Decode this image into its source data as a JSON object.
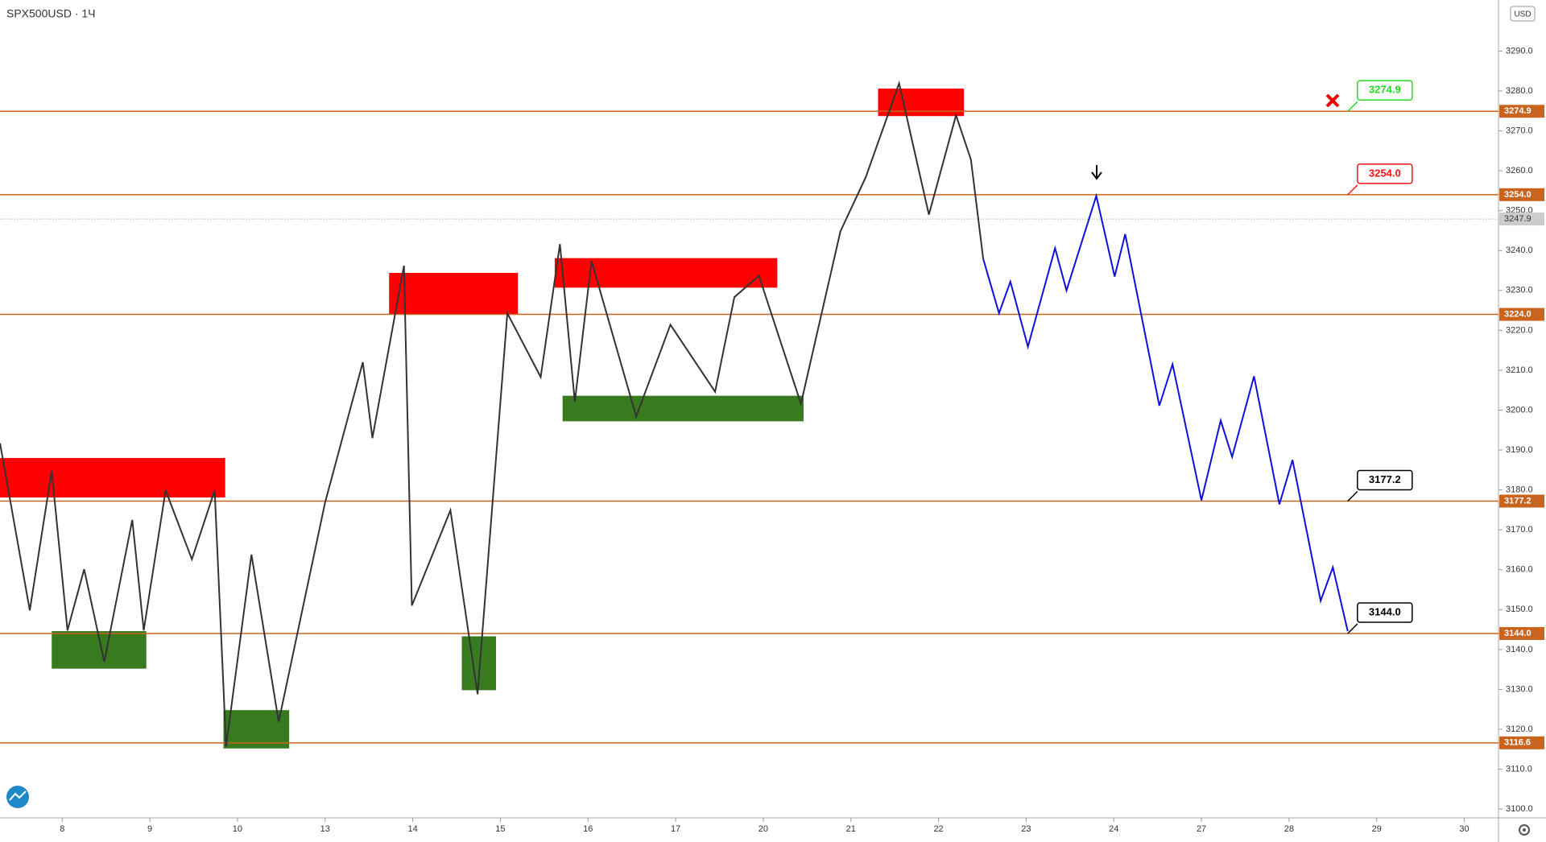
{
  "chart_data": {
    "type": "line",
    "title": "SPX500USD · 1Ч",
    "currency": "USD",
    "xlim": [
      -0.71,
      16.39
    ],
    "ylim": [
      3097.8,
      3302.8
    ],
    "xticks": [
      {
        "value": 0,
        "label": "8"
      },
      {
        "value": 1,
        "label": "9"
      },
      {
        "value": 2,
        "label": "10"
      },
      {
        "value": 3,
        "label": "13"
      },
      {
        "value": 4,
        "label": "14"
      },
      {
        "value": 5,
        "label": "15"
      },
      {
        "value": 6,
        "label": "16"
      },
      {
        "value": 7,
        "label": "17"
      },
      {
        "value": 8,
        "label": "20"
      },
      {
        "value": 9,
        "label": "21"
      },
      {
        "value": 10,
        "label": "22"
      },
      {
        "value": 11,
        "label": "23"
      },
      {
        "value": 12,
        "label": "24"
      },
      {
        "value": 13,
        "label": "27"
      },
      {
        "value": 14,
        "label": "28"
      },
      {
        "value": 15,
        "label": "29"
      },
      {
        "value": 16,
        "label": "30"
      }
    ],
    "yticks": [
      {
        "value": 3100,
        "label": "3100.0"
      },
      {
        "value": 3110,
        "label": "3110.0"
      },
      {
        "value": 3120,
        "label": "3120.0"
      },
      {
        "value": 3130,
        "label": "3130.0"
      },
      {
        "value": 3140,
        "label": "3140.0"
      },
      {
        "value": 3150,
        "label": "3150.0"
      },
      {
        "value": 3160,
        "label": "3160.0"
      },
      {
        "value": 3170,
        "label": "3170.0"
      },
      {
        "value": 3180,
        "label": "3180.0"
      },
      {
        "value": 3190,
        "label": "3190.0"
      },
      {
        "value": 3200,
        "label": "3200.0"
      },
      {
        "value": 3210,
        "label": "3210.0"
      },
      {
        "value": 3220,
        "label": "3220.0"
      },
      {
        "value": 3230,
        "label": "3230.0"
      },
      {
        "value": 3240,
        "label": "3240.0"
      },
      {
        "value": 3250,
        "label": "3250.0"
      },
      {
        "value": 3260,
        "label": "3260.0"
      },
      {
        "value": 3270,
        "label": "3270.0"
      },
      {
        "value": 3280,
        "label": "3280.0"
      },
      {
        "value": 3290,
        "label": "3290.0"
      }
    ],
    "level_color": "#c8641e",
    "levels": [
      {
        "value": 3274.9,
        "label": "3274.9"
      },
      {
        "value": 3254,
        "label": "3254.0"
      },
      {
        "value": 3224,
        "label": "3224.0"
      },
      {
        "value": 3177.2,
        "label": "3177.2"
      },
      {
        "value": 3144,
        "label": "3144.0"
      },
      {
        "value": 3116.6,
        "label": "3116.6"
      }
    ],
    "last_price": 3247.9,
    "targets": [
      {
        "x": 14.67,
        "value": 3274.9,
        "label": "3274.9",
        "color": "#22dd22"
      },
      {
        "x": 14.67,
        "value": 3254,
        "label": "3254.0",
        "color": "#ff1111"
      },
      {
        "x": 14.67,
        "value": 3177.2,
        "label": "3177.2",
        "color": "#000000"
      },
      {
        "x": 14.67,
        "value": 3144,
        "label": "3144.0",
        "color": "#000000"
      }
    ],
    "zones": [
      {
        "x": [
          -0.71,
          1.86
        ],
        "y": [
          3178.1,
          3188.0
        ],
        "color": "#ff0000"
      },
      {
        "x": [
          -0.12,
          0.96
        ],
        "y": [
          3135.2,
          3144.6
        ],
        "color": "#387a1e"
      },
      {
        "x": [
          1.84,
          2.59
        ],
        "y": [
          3115.2,
          3124.8
        ],
        "color": "#387a1e"
      },
      {
        "x": [
          3.73,
          5.2
        ],
        "y": [
          3224.1,
          3234.4
        ],
        "color": "#ff0000"
      },
      {
        "x": [
          4.56,
          4.95
        ],
        "y": [
          3129.8,
          3143.3
        ],
        "color": "#387a1e"
      },
      {
        "x": [
          5.62,
          8.16
        ],
        "y": [
          3230.7,
          3238.1
        ],
        "color": "#ff0000"
      },
      {
        "x": [
          5.71,
          8.46
        ],
        "y": [
          3197.2,
          3203.6
        ],
        "color": "#387a1e"
      },
      {
        "x": [
          9.31,
          10.29
        ],
        "y": [
          3273.7,
          3280.6
        ],
        "color": "#ff0000"
      }
    ],
    "series": [
      {
        "color": "#333333",
        "x": [
          -0.71,
          -0.37,
          -0.12,
          0.06,
          0.25,
          0.48,
          0.8,
          0.93,
          1.18,
          1.48,
          1.74,
          1.87,
          2.16,
          2.47,
          3.0,
          3.43,
          3.54,
          3.9,
          3.99,
          4.43,
          4.74,
          5.08,
          5.46,
          5.68,
          5.85,
          6.04,
          6.55,
          6.94,
          7.45,
          7.67,
          7.95,
          8.43,
          8.88,
          9.17,
          9.55,
          9.89,
          10.2,
          10.37,
          10.51
        ],
        "values": [
          3191.7,
          3149.8,
          3184.8,
          3144.8,
          3160.1,
          3136.9,
          3172.5,
          3144.8,
          3179.9,
          3162.6,
          3179.9,
          3115.7,
          3163.8,
          3121.9,
          3176.9,
          3212.0,
          3193.0,
          3236.2,
          3151.0,
          3174.9,
          3128.8,
          3224.3,
          3208.3,
          3241.6,
          3202.1,
          3237.4,
          3198.4,
          3221.4,
          3204.6,
          3228.3,
          3233.7,
          3201.6,
          3244.8,
          3258.4,
          3281.9,
          3249.0,
          3273.9,
          3262.8,
          3237.9
        ]
      },
      {
        "color": "#1010dd",
        "x": [
          10.51,
          10.69,
          10.82,
          11.02,
          11.33,
          11.46,
          11.8,
          12.01,
          12.13,
          12.52,
          12.67,
          13.0,
          13.22,
          13.35,
          13.6,
          13.89,
          14.04,
          14.36,
          14.5,
          14.67
        ],
        "values": [
          3237.9,
          3224.3,
          3232.2,
          3215.9,
          3240.6,
          3230.0,
          3253.7,
          3233.5,
          3244.1,
          3201.1,
          3211.5,
          3177.4,
          3197.4,
          3188.3,
          3208.5,
          3176.4,
          3187.5,
          3152.2,
          3160.6,
          3144.6
        ]
      }
    ]
  }
}
